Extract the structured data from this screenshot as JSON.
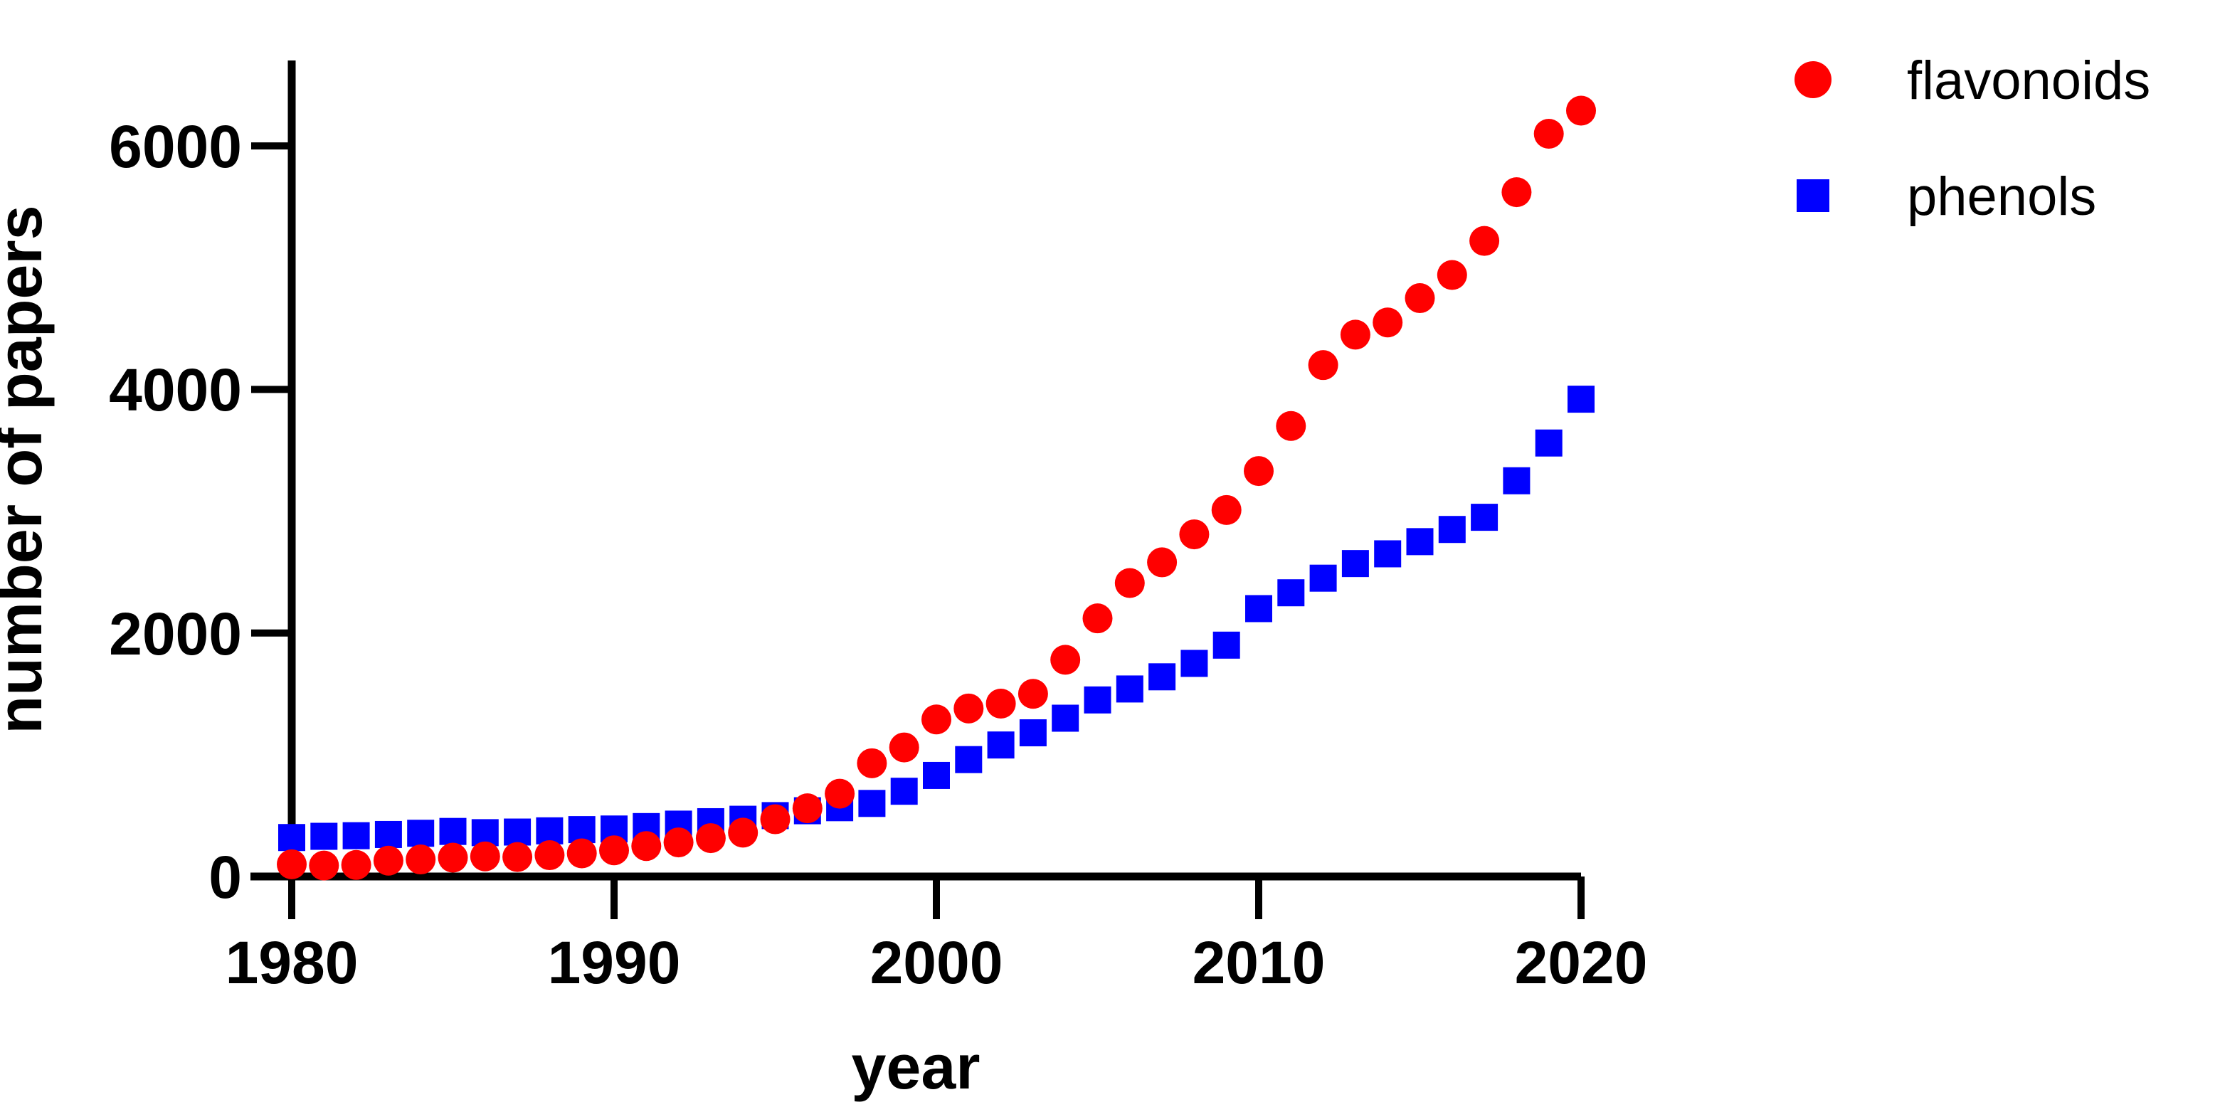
{
  "chart_data": {
    "type": "scatter",
    "title": "",
    "xlabel": "year",
    "ylabel": "number of papers",
    "x": [
      1980,
      1981,
      1982,
      1983,
      1984,
      1985,
      1986,
      1987,
      1988,
      1989,
      1990,
      1991,
      1992,
      1993,
      1994,
      1995,
      1996,
      1997,
      1998,
      1999,
      2000,
      2001,
      2002,
      2003,
      2004,
      2005,
      2006,
      2007,
      2008,
      2009,
      2010,
      2011,
      2012,
      2013,
      2014,
      2015,
      2016,
      2017,
      2018,
      2019,
      2020
    ],
    "series": [
      {
        "name": "flavonoids",
        "marker": "circle",
        "color": "#ff0000",
        "values": [
          100,
          90,
          95,
          130,
          140,
          155,
          165,
          160,
          175,
          190,
          215,
          250,
          280,
          315,
          360,
          470,
          560,
          680,
          930,
          1060,
          1290,
          1380,
          1420,
          1500,
          1780,
          2120,
          2410,
          2580,
          2810,
          3010,
          3330,
          3700,
          4200,
          4450,
          4550,
          4750,
          4940,
          5220,
          5620,
          6100,
          6290
        ]
      },
      {
        "name": "phenols",
        "marker": "square",
        "color": "#0000ff",
        "values": [
          320,
          330,
          335,
          345,
          355,
          370,
          360,
          365,
          375,
          385,
          390,
          410,
          430,
          450,
          470,
          500,
          540,
          565,
          600,
          700,
          830,
          960,
          1080,
          1180,
          1300,
          1450,
          1540,
          1640,
          1750,
          1900,
          2200,
          2330,
          2450,
          2570,
          2650,
          2750,
          2850,
          2950,
          3250,
          3560,
          3920
        ]
      }
    ],
    "xticks": [
      1980,
      1990,
      2000,
      2010,
      2020
    ],
    "yticks": [
      0,
      2000,
      4000,
      6000
    ],
    "xlim": [
      1978.7,
      2020
    ],
    "ylim": [
      0,
      6700
    ],
    "grid": false,
    "legend_position": "top-right",
    "axis_color": "#000000",
    "background_color": "#ffffff"
  }
}
